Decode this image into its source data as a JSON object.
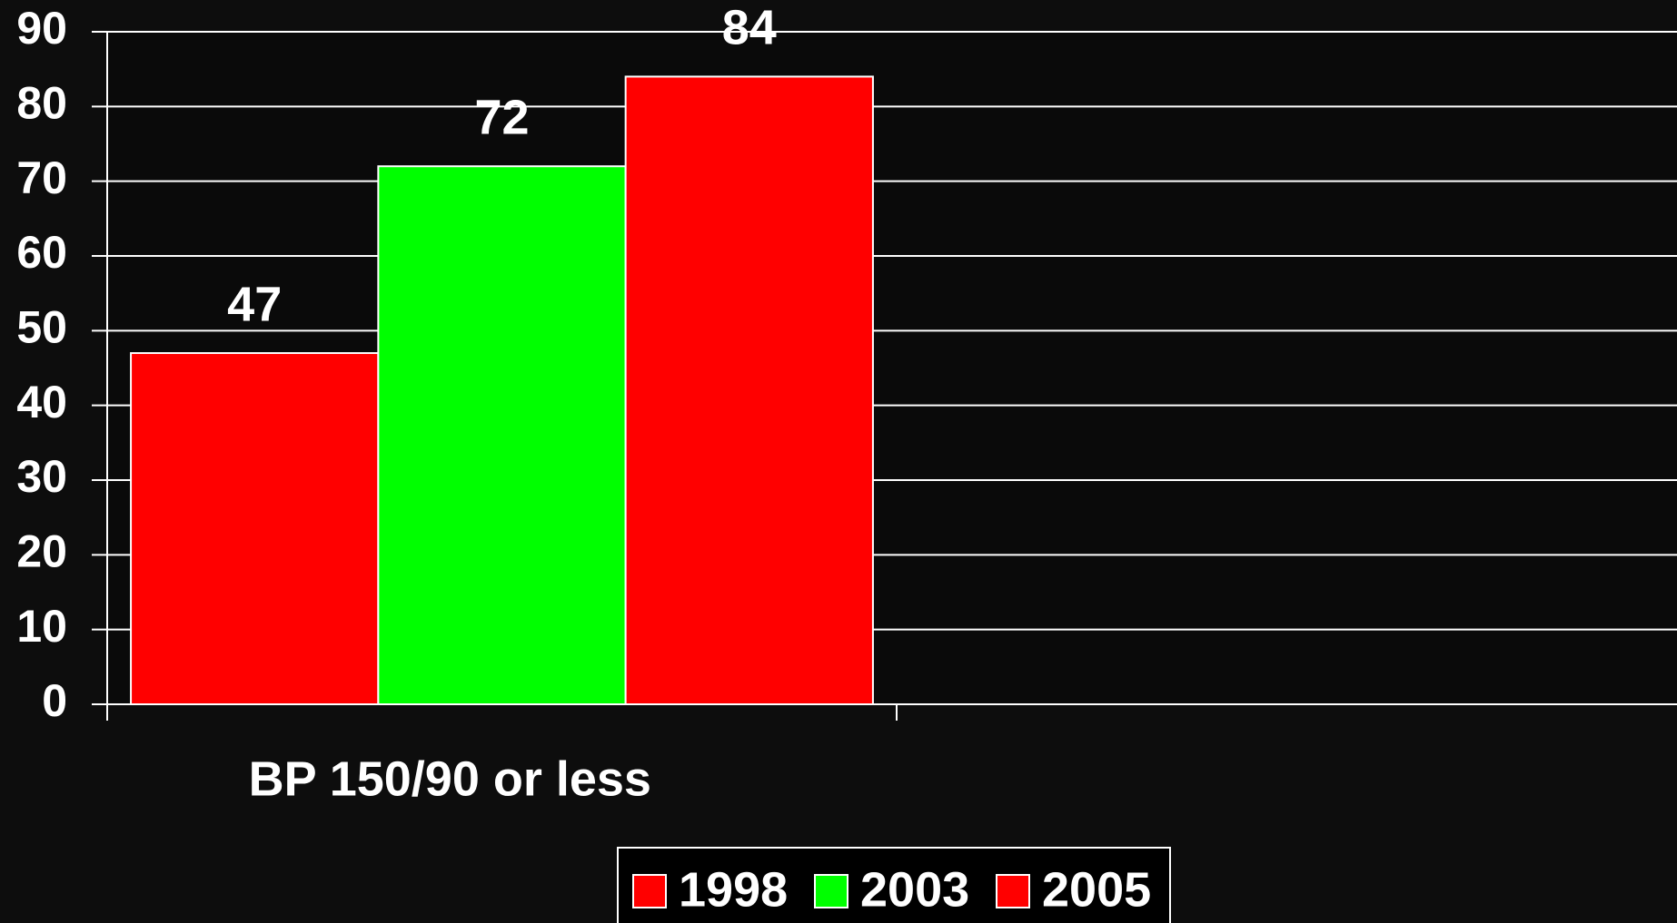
{
  "chart_data": {
    "type": "bar",
    "categories": [
      "BP 150/90 or less"
    ],
    "series": [
      {
        "name": "1998",
        "color": "#ff0000",
        "values": [
          47
        ]
      },
      {
        "name": "2003",
        "color": "#00ff00",
        "values": [
          72
        ]
      },
      {
        "name": "2005",
        "color": "#ff0000",
        "values": [
          84
        ]
      }
    ],
    "ylim": [
      0,
      90
    ],
    "yticks": [
      0,
      10,
      20,
      30,
      40,
      50,
      60,
      70,
      80,
      90
    ],
    "grid": true,
    "legend": "bottom"
  }
}
